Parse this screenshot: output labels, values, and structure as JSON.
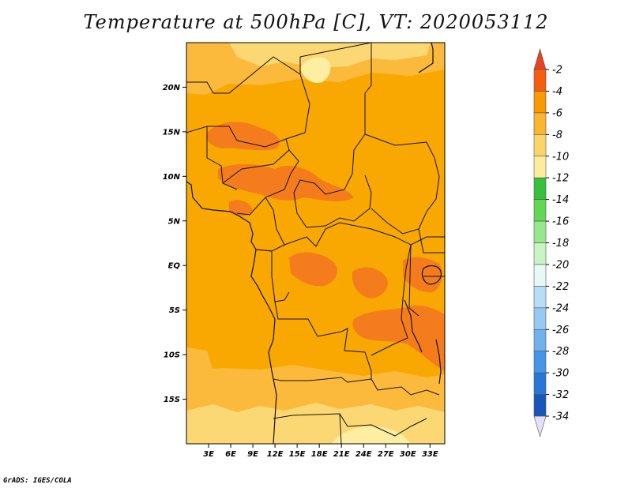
{
  "title": "Temperature at 500hPa [C], VT: 2020053112",
  "credit": "GrADS: IGES/COLA",
  "map": {
    "lon_range": [
      0,
      35
    ],
    "lat_range": [
      -20,
      25
    ],
    "lat_ticks": [
      {
        "value": 20,
        "label": "20N"
      },
      {
        "value": 15,
        "label": "15N"
      },
      {
        "value": 10,
        "label": "10N"
      },
      {
        "value": 5,
        "label": "5N"
      },
      {
        "value": 0,
        "label": "EQ"
      },
      {
        "value": -5,
        "label": "5S"
      },
      {
        "value": -10,
        "label": "10S"
      },
      {
        "value": -15,
        "label": "15S"
      }
    ],
    "lon_ticks": [
      {
        "value": 3,
        "label": "3E"
      },
      {
        "value": 6,
        "label": "6E"
      },
      {
        "value": 9,
        "label": "9E"
      },
      {
        "value": 12,
        "label": "12E"
      },
      {
        "value": 15,
        "label": "15E"
      },
      {
        "value": 18,
        "label": "18E"
      },
      {
        "value": 21,
        "label": "21E"
      },
      {
        "value": 24,
        "label": "24E"
      },
      {
        "value": 27,
        "label": "27E"
      },
      {
        "value": 30,
        "label": "30E"
      },
      {
        "value": 33,
        "label": "33E"
      }
    ],
    "colors": {
      "base": "#f8a800",
      "warm": "#f57c1c",
      "cool": "#fcba3c",
      "cooler": "#fcd874",
      "coolest": "#fdeea2",
      "border": "#111111"
    }
  },
  "colorbar": {
    "levels": [
      {
        "label": "-2",
        "color": "#f55e12"
      },
      {
        "label": "-4",
        "color": "#f89a00"
      },
      {
        "label": "-6",
        "color": "#f9b62e"
      },
      {
        "label": "-8",
        "color": "#fcd56a"
      },
      {
        "label": "-10",
        "color": "#fdec9e"
      },
      {
        "label": "-12",
        "color": "#37c03d"
      },
      {
        "label": "-14",
        "color": "#62d655"
      },
      {
        "label": "-16",
        "color": "#97e88d"
      },
      {
        "label": "-18",
        "color": "#c8f5c1"
      },
      {
        "label": "-20",
        "color": "#e6f9f7"
      },
      {
        "label": "-22",
        "color": "#b7ddf8"
      },
      {
        "label": "-24",
        "color": "#96caf2"
      },
      {
        "label": "-26",
        "color": "#71b2ed"
      },
      {
        "label": "-28",
        "color": "#4596e6"
      },
      {
        "label": "-30",
        "color": "#2a76d7"
      },
      {
        "label": "-32",
        "color": "#1856bb"
      },
      {
        "label": "-34",
        "color": "#0d2f95"
      }
    ],
    "top_color": "#e8421e",
    "bottom_color": "#1a1a6e",
    "bottom_tip_color": "#e4e0f6"
  }
}
